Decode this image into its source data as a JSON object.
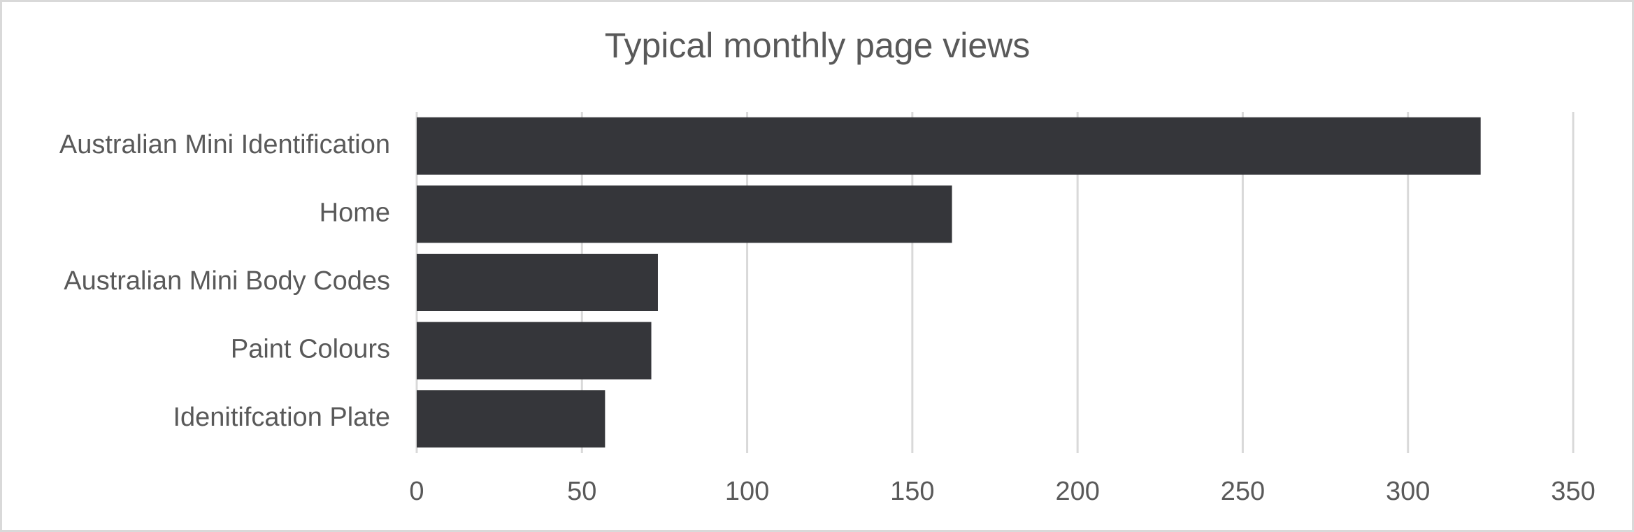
{
  "chart_data": {
    "type": "bar",
    "orientation": "horizontal",
    "title": "Typical monthly page views",
    "categories": [
      "Australian Mini Identification",
      "Home",
      "Australian Mini Body Codes",
      "Paint Colours",
      "Idenitifcation Plate"
    ],
    "values": [
      322,
      162,
      73,
      71,
      57
    ],
    "color": "#35363a",
    "xlim": [
      0,
      350
    ],
    "xticks": [
      0,
      50,
      100,
      150,
      200,
      250,
      300,
      350
    ],
    "grid": true
  }
}
